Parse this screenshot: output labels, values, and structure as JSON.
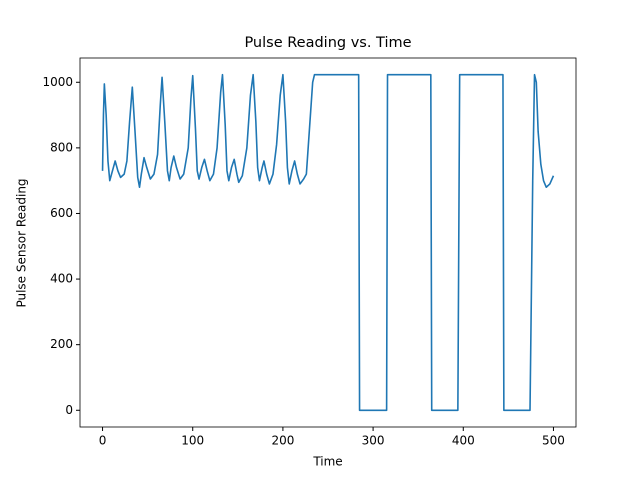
{
  "chart_data": {
    "type": "line",
    "title": "Pulse Reading vs. Time",
    "x_label": "Time",
    "y_label": "Pulse Sensor Reading",
    "x": [
      0,
      1,
      2,
      4,
      6,
      8,
      11,
      14,
      17,
      20,
      24,
      27,
      30,
      33,
      36,
      39,
      41,
      43,
      46,
      49,
      53,
      57,
      61,
      64,
      66,
      69,
      72,
      74,
      76,
      79,
      82,
      86,
      90,
      95,
      98,
      100,
      103,
      105,
      107,
      110,
      113,
      116,
      119,
      123,
      127,
      131,
      133,
      136,
      138,
      140,
      143,
      146,
      149,
      151,
      155,
      160,
      164,
      167,
      170,
      172,
      174,
      177,
      179,
      182,
      185,
      189,
      193,
      197,
      200,
      203,
      205,
      207,
      210,
      213,
      216,
      219,
      223,
      226,
      233,
      235,
      284,
      285,
      315,
      316,
      364,
      365,
      394,
      396,
      444,
      445,
      474,
      477,
      479,
      481,
      483,
      486,
      489,
      492,
      496,
      500
    ],
    "series": [
      {
        "name": "Pulse",
        "color": "#1f77b4",
        "values": [
          730,
          900,
          995,
          900,
          760,
          700,
          730,
          760,
          730,
          710,
          720,
          760,
          880,
          985,
          850,
          710,
          680,
          720,
          770,
          740,
          705,
          720,
          780,
          930,
          1015,
          880,
          730,
          700,
          740,
          775,
          740,
          705,
          720,
          800,
          950,
          1020,
          860,
          730,
          705,
          740,
          765,
          730,
          700,
          720,
          800,
          970,
          1023,
          870,
          730,
          700,
          740,
          765,
          720,
          695,
          715,
          800,
          960,
          1023,
          880,
          740,
          700,
          740,
          760,
          720,
          690,
          720,
          810,
          960,
          1023,
          880,
          740,
          690,
          730,
          760,
          720,
          690,
          705,
          720,
          1000,
          1023,
          1023,
          0,
          0,
          1023,
          1023,
          0,
          0,
          1023,
          1023,
          0,
          0,
          700,
          1023,
          1000,
          850,
          750,
          700,
          680,
          690,
          715
        ]
      }
    ],
    "xlim": [
      -25,
      525
    ],
    "ylim": [
      -51,
      1074
    ],
    "xticks": [
      0,
      100,
      200,
      300,
      400,
      500
    ],
    "yticks": [
      0,
      200,
      400,
      600,
      800,
      1000
    ],
    "grid": false
  }
}
